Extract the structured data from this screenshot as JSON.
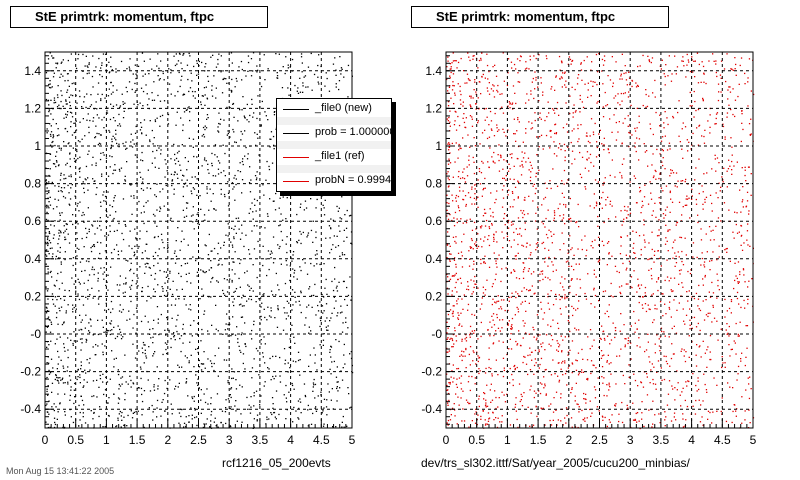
{
  "colors": {
    "black": "#000000",
    "red": "#e00000",
    "grid": "#000000"
  },
  "panels": {
    "left": {
      "title": "StE primtrk: momentum, ftpc",
      "caption": "rcf1216_05_200evts"
    },
    "right": {
      "title": "StE primtrk: momentum, ftpc",
      "caption": "dev/trs_sl302.ittf/Sat/year_2005/cucu200_minbias/"
    }
  },
  "footer": {
    "date": "Mon Aug 15 13:41:22 2005"
  },
  "legend": {
    "entries": [
      {
        "label": "_file0 (new)",
        "color": "#000000"
      },
      {
        "label": "prob = 1.000000",
        "color": "#000000"
      },
      {
        "label": "_file1 (ref)",
        "color": "#e00000"
      },
      {
        "label": "probN = 0.999490",
        "color": "#e00000"
      }
    ]
  },
  "chart_data": [
    {
      "type": "scatter",
      "title": "StE primtrk: momentum, ftpc",
      "xlabel": "",
      "ylabel": "",
      "xlim": [
        0,
        5
      ],
      "ylim": [
        -0.5,
        1.5
      ],
      "xticks": [
        "0",
        "0.5",
        "1",
        "1.5",
        "2",
        "2.5",
        "3",
        "3.5",
        "4",
        "4.5",
        "5"
      ],
      "yticks": [
        "-0.4",
        "-0.2",
        "-0",
        "0.2",
        "0.4",
        "0.6",
        "0.8",
        "1",
        "1.2",
        "1.4"
      ],
      "grid": true,
      "point_density": "uniform, denser at low x",
      "series": [
        {
          "name": "_file0 (new)",
          "color": "#000000"
        }
      ]
    },
    {
      "type": "scatter",
      "title": "StE primtrk: momentum, ftpc",
      "xlabel": "",
      "ylabel": "",
      "xlim": [
        0,
        5
      ],
      "ylim": [
        -0.5,
        1.5
      ],
      "xticks": [
        "0",
        "0.5",
        "1",
        "1.5",
        "2",
        "2.5",
        "3",
        "3.5",
        "4",
        "4.5",
        "5"
      ],
      "yticks": [
        "-0.4",
        "-0.2",
        "-0",
        "0.2",
        "0.4",
        "0.6",
        "0.8",
        "1",
        "1.2",
        "1.4"
      ],
      "grid": true,
      "point_density": "uniform, denser at low x",
      "series": [
        {
          "name": "_file1 (ref)",
          "color": "#e00000"
        }
      ]
    }
  ]
}
